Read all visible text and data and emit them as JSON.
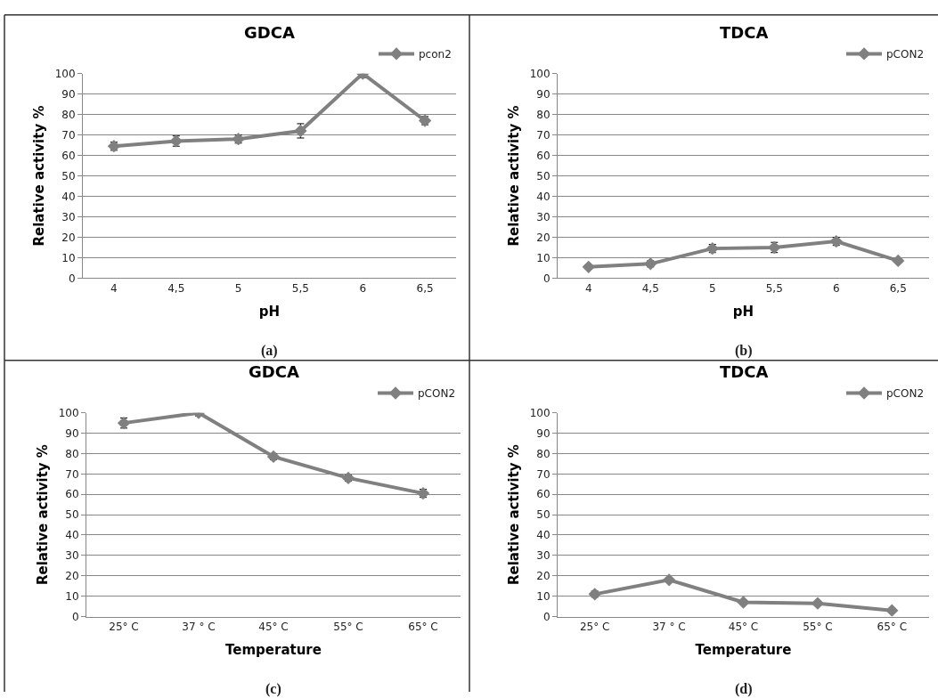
{
  "chart_data": [
    {
      "type": "line",
      "title": "GDCA",
      "xlabel": "pH",
      "ylabel": "Relative activity %",
      "annotations": [
        "(a)"
      ],
      "categories": [
        "4",
        "4,5",
        "5",
        "5,5",
        "6",
        "6,5"
      ],
      "series": [
        {
          "name": "pcon2",
          "color": "#808080",
          "values": [
            64.5,
            67,
            68,
            72,
            100,
            77
          ],
          "errors": [
            2,
            2.5,
            2,
            3.5,
            2,
            2
          ]
        }
      ],
      "ylim": [
        0,
        100
      ],
      "yticks": [
        0,
        10,
        20,
        30,
        40,
        50,
        60,
        70,
        80,
        90,
        100
      ],
      "grid": "y",
      "legend": "top right",
      "marker": "diamond",
      "line_style": "solid"
    },
    {
      "type": "line",
      "title": "TDCA",
      "xlabel": "pH",
      "ylabel": "Relative activity %",
      "annotations": [
        "(b)"
      ],
      "categories": [
        "4",
        "4,5",
        "5",
        "5,5",
        "6",
        "6,5"
      ],
      "series": [
        {
          "name": "pCON2",
          "color": "#808080",
          "values": [
            5.5,
            7,
            14.5,
            15,
            18,
            8.5
          ],
          "errors": [
            1,
            1.5,
            2,
            2.5,
            2,
            1
          ]
        }
      ],
      "ylim": [
        0,
        100
      ],
      "yticks": [
        0,
        10,
        20,
        30,
        40,
        50,
        60,
        70,
        80,
        90,
        100
      ],
      "grid": "y",
      "legend": "top right",
      "marker": "diamond",
      "line_style": "solid"
    },
    {
      "type": "line",
      "title": "GDCA",
      "xlabel": "Temperature",
      "ylabel": "Relative activity %",
      "annotations": [
        "(c)"
      ],
      "categories": [
        "25° C",
        "37 ° C",
        "45° C",
        "55° C",
        "65° C"
      ],
      "series": [
        {
          "name": "pCON2",
          "color": "#808080",
          "values": [
            95,
            100,
            78.5,
            68,
            60.5
          ],
          "errors": [
            2.5,
            1.5,
            1.5,
            1.5,
            2
          ]
        }
      ],
      "ylim": [
        0,
        100
      ],
      "yticks": [
        0,
        10,
        20,
        30,
        40,
        50,
        60,
        70,
        80,
        90,
        100
      ],
      "grid": "y",
      "legend": "top right",
      "marker": "diamond",
      "line_style": "solid"
    },
    {
      "type": "line",
      "title": "TDCA",
      "xlabel": "Temperature",
      "ylabel": "Relative activity %",
      "annotations": [
        "(d)"
      ],
      "categories": [
        "25° C",
        "37 ° C",
        "45° C",
        "55° C",
        "65° C"
      ],
      "series": [
        {
          "name": "pCON2",
          "color": "#808080",
          "values": [
            11,
            18,
            7,
            6.5,
            3
          ],
          "errors": [
            1.5,
            1,
            1,
            1,
            0.5
          ]
        }
      ],
      "ylim": [
        0,
        100
      ],
      "yticks": [
        0,
        10,
        20,
        30,
        40,
        50,
        60,
        70,
        80,
        90,
        100
      ],
      "grid": "y",
      "legend": "top right",
      "marker": "diamond",
      "line_style": "solid"
    }
  ]
}
